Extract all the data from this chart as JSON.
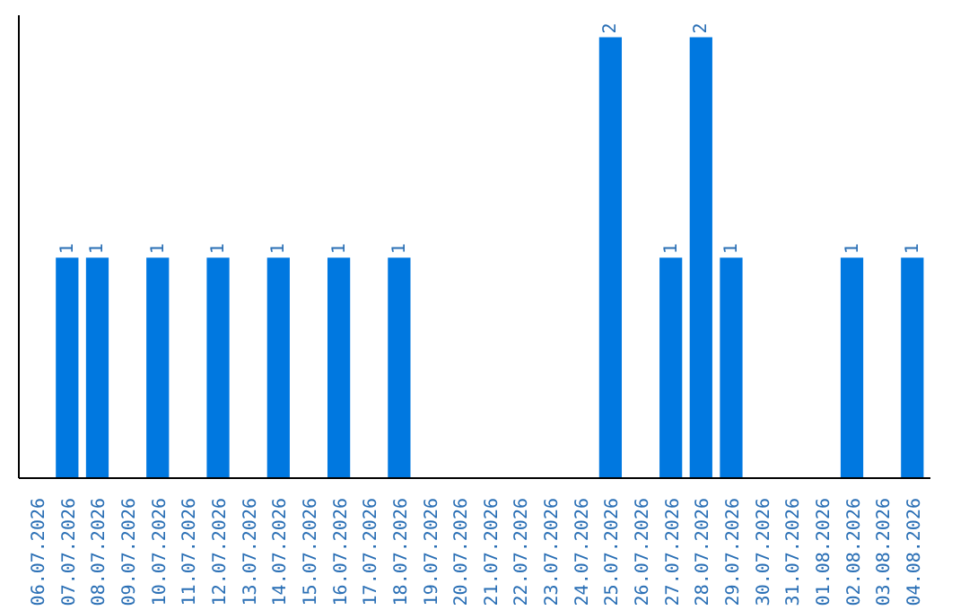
{
  "chart_data": {
    "type": "bar",
    "categories": [
      "06.07.2026",
      "07.07.2026",
      "08.07.2026",
      "09.07.2026",
      "10.07.2026",
      "11.07.2026",
      "12.07.2026",
      "13.07.2026",
      "14.07.2026",
      "15.07.2026",
      "16.07.2026",
      "17.07.2026",
      "18.07.2026",
      "19.07.2026",
      "20.07.2026",
      "21.07.2026",
      "22.07.2026",
      "23.07.2026",
      "24.07.2026",
      "25.07.2026",
      "26.07.2026",
      "27.07.2026",
      "28.07.2026",
      "29.07.2026",
      "30.07.2026",
      "31.07.2026",
      "01.08.2026",
      "02.08.2026",
      "03.08.2026",
      "04.08.2026"
    ],
    "values": [
      0,
      1,
      1,
      0,
      1,
      0,
      1,
      0,
      1,
      0,
      1,
      0,
      1,
      0,
      0,
      0,
      0,
      0,
      0,
      2,
      0,
      1,
      2,
      1,
      0,
      0,
      0,
      1,
      0,
      1
    ],
    "value_labels": [
      null,
      "1",
      "1",
      null,
      "1",
      null,
      "1",
      null,
      "1",
      null,
      "1",
      null,
      "1",
      null,
      null,
      null,
      null,
      null,
      null,
      "2",
      null,
      "1",
      "2",
      "1",
      null,
      null,
      null,
      "1",
      null,
      "1"
    ],
    "color": "#0078e0"
  }
}
